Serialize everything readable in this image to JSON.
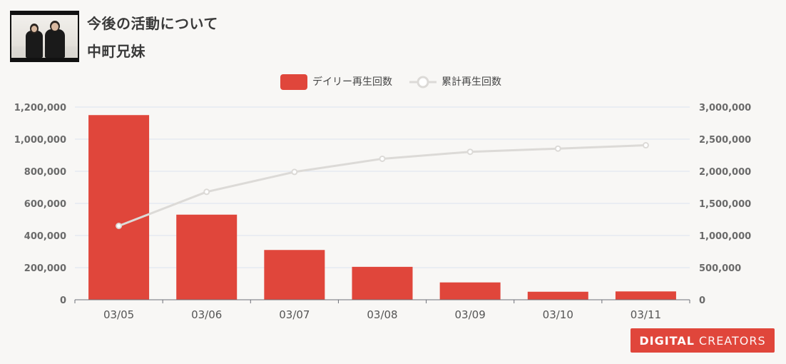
{
  "header": {
    "title": "今後の活動について",
    "channel": "中町兄妹"
  },
  "brand": {
    "logo_bold": "DIGITAL",
    "logo_light": "CREATORS",
    "color": "#e0463b"
  },
  "chart_data": {
    "type": "bar",
    "categories": [
      "03/05",
      "03/06",
      "03/07",
      "03/08",
      "03/09",
      "03/10",
      "03/11"
    ],
    "series": [
      {
        "name": "デイリー再生回数",
        "type": "bar",
        "axis": "left",
        "color": "#e0463b",
        "values": [
          1150000,
          530000,
          310000,
          205000,
          108000,
          50000,
          52000
        ]
      },
      {
        "name": "累計再生回数",
        "type": "line",
        "axis": "right",
        "color": "#dcdad7",
        "values": [
          1150000,
          1680000,
          1990000,
          2195000,
          2303000,
          2353000,
          2405000
        ]
      }
    ],
    "y_left": {
      "range": [
        0,
        1200000
      ],
      "ticks": [
        "0",
        "200,000",
        "400,000",
        "600,000",
        "800,000",
        "1,000,000",
        "1,200,000"
      ]
    },
    "y_right": {
      "range": [
        0,
        3000000
      ],
      "ticks": [
        "0",
        "500,000",
        "1,000,000",
        "1,500,000",
        "2,000,000",
        "2,500,000",
        "3,000,000"
      ]
    },
    "grid": true,
    "legend_position": "top-center"
  }
}
